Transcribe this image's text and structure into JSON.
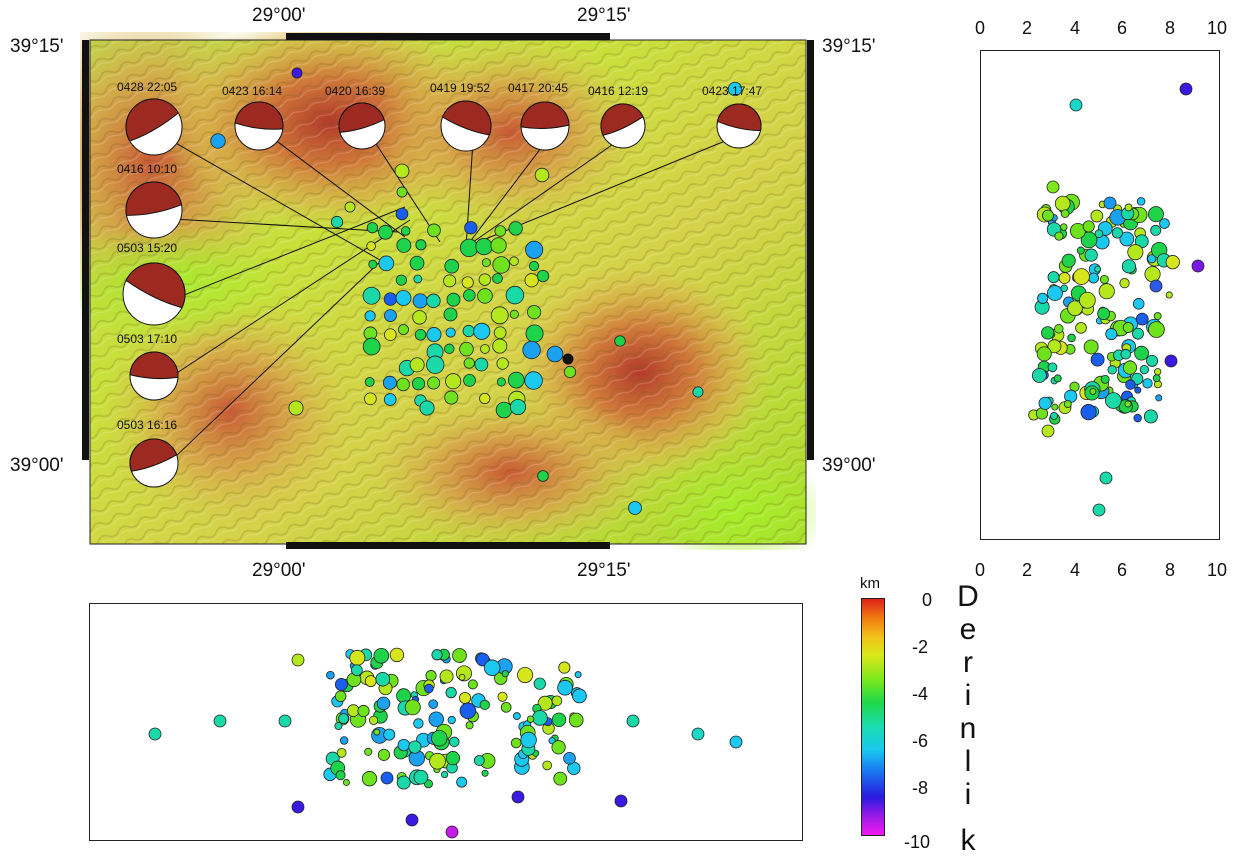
{
  "map": {
    "lon_labels": [
      "29°00'",
      "29°15'"
    ],
    "lat_labels": [
      "39°15'",
      "39°00'"
    ]
  },
  "focal_mechanisms": [
    {
      "label": "0428 22:05"
    },
    {
      "label": "0423 16:14"
    },
    {
      "label": "0420 16:39"
    },
    {
      "label": "0419 19:52"
    },
    {
      "label": "0417 20:45"
    },
    {
      "label": "0416 12:19"
    },
    {
      "label": "0423 17:47"
    },
    {
      "label": "0416 10:10"
    },
    {
      "label": "0503 15:20"
    },
    {
      "label": "0503 17:10"
    },
    {
      "label": "0503 16:16"
    }
  ],
  "side_panel": {
    "ticks": [
      "0",
      "2",
      "4",
      "6",
      "8",
      "10"
    ]
  },
  "colorbar": {
    "unit": "km",
    "ticks": [
      "0",
      "-2",
      "-4",
      "-6",
      "-8",
      "-10"
    ],
    "title_letters": [
      "D",
      "e",
      "r",
      "i",
      "n",
      "l",
      "i",
      "k"
    ]
  }
}
